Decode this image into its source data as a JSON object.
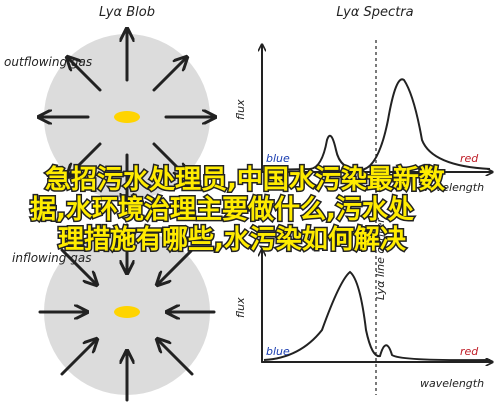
{
  "left_panel": {
    "title": "Lyα Blob",
    "top_label": "outflowing gas",
    "bottom_label": "inflowing gas"
  },
  "right_panel": {
    "title": "Lyα Spectra",
    "top": {
      "y_label": "flux",
      "x_label": "wavelength",
      "blue_label": "blue",
      "red_label": "red"
    },
    "bottom": {
      "y_label": "flux",
      "x_label": "wavelength",
      "blue_label": "blue",
      "red_label": "red",
      "line_label": "Lyα line center"
    }
  },
  "overlay_lines": [
    "急招污水处理员,中国水污染最新数",
    "据,水环境治理主要做什么,污水处",
    "理措施有哪些,水污染如何解决"
  ]
}
